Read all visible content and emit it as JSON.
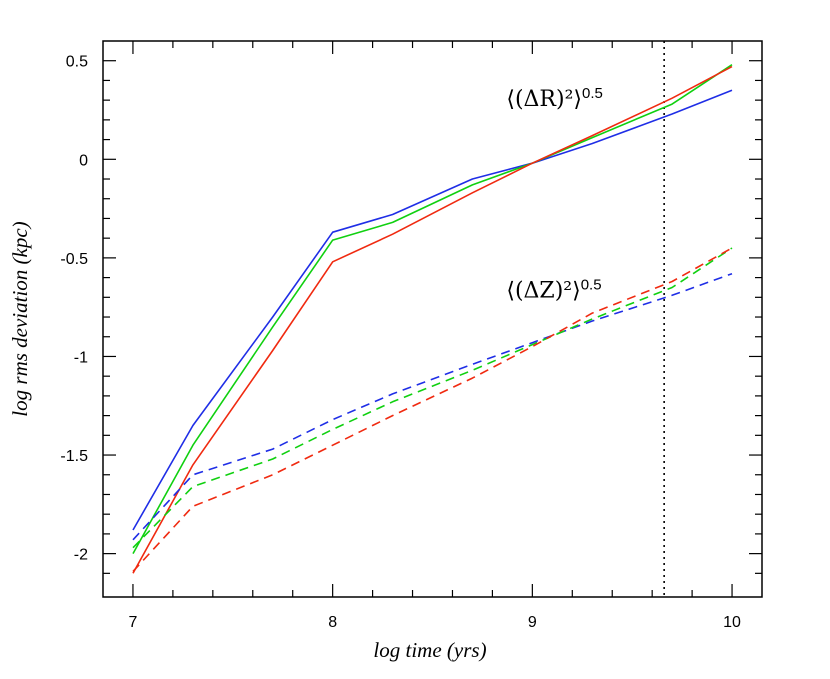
{
  "chart_data": {
    "type": "line",
    "xlabel": "log time (yrs)",
    "ylabel": "log rms deviation (kpc)",
    "xlim": [
      6.85,
      10.15
    ],
    "ylim": [
      -2.22,
      0.6
    ],
    "x_ticks": [
      7,
      8,
      9,
      10
    ],
    "x_tick_labels": [
      "7",
      "8",
      "9",
      "10"
    ],
    "y_ticks": [
      0.5,
      0,
      -0.5,
      -1,
      -1.5,
      -2
    ],
    "y_tick_labels": [
      "0.5",
      "0",
      "-0.5",
      "-1",
      "-1.5",
      "-2"
    ],
    "grid": false,
    "legend": "none",
    "x": [
      7,
      7.3,
      7.7,
      8,
      8.3,
      8.7,
      9,
      9.3,
      9.7,
      10
    ],
    "series": [
      {
        "group": "R",
        "style": "solid",
        "color": "#1f2ee6",
        "values": [
          -1.88,
          -1.35,
          -0.8,
          -0.37,
          -0.28,
          -0.1,
          -0.02,
          0.08,
          0.23,
          0.35
        ]
      },
      {
        "group": "R",
        "style": "solid",
        "color": "#10d010",
        "values": [
          -2.0,
          -1.45,
          -0.85,
          -0.41,
          -0.32,
          -0.13,
          -0.02,
          0.11,
          0.28,
          0.48
        ]
      },
      {
        "group": "R",
        "style": "solid",
        "color": "#f02a10",
        "values": [
          -2.1,
          -1.55,
          -0.97,
          -0.52,
          -0.38,
          -0.17,
          -0.02,
          0.12,
          0.31,
          0.47
        ]
      },
      {
        "group": "Z",
        "style": "dashed",
        "color": "#1f2ee6",
        "values": [
          -1.93,
          -1.6,
          -1.47,
          -1.32,
          -1.19,
          -1.04,
          -0.93,
          -0.82,
          -0.69,
          -0.58
        ]
      },
      {
        "group": "Z",
        "style": "dashed",
        "color": "#10d010",
        "values": [
          -1.97,
          -1.66,
          -1.52,
          -1.37,
          -1.23,
          -1.07,
          -0.94,
          -0.81,
          -0.65,
          -0.45
        ]
      },
      {
        "group": "Z",
        "style": "dashed",
        "color": "#f02a10",
        "values": [
          -2.09,
          -1.76,
          -1.6,
          -1.45,
          -1.3,
          -1.11,
          -0.95,
          -0.78,
          -0.62,
          -0.45
        ]
      }
    ],
    "reference_line": {
      "x": 9.66,
      "style": "dotted",
      "color": "#000000"
    },
    "annotations": [
      {
        "id": "R",
        "text": "⟨(ΔR)²⟩",
        "exponent": "0.5",
        "x": 8.87,
        "y": 0.3
      },
      {
        "id": "Z",
        "text": "⟨(ΔZ)²⟩",
        "exponent": "0.5",
        "x": 8.87,
        "y": -0.67
      }
    ]
  }
}
